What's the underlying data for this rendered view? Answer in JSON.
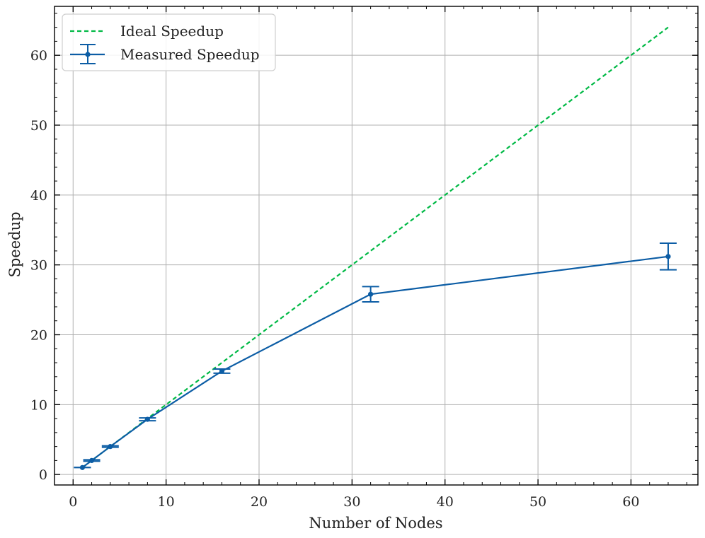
{
  "chart_data": {
    "type": "line",
    "xlabel": "Number of Nodes",
    "ylabel": "Speedup",
    "xlim": [
      -2,
      67.2
    ],
    "ylim": [
      -1.5,
      67
    ],
    "x_ticks": [
      0,
      10,
      20,
      30,
      40,
      50,
      60
    ],
    "y_ticks": [
      0,
      10,
      20,
      30,
      40,
      50,
      60
    ],
    "x_tick_labels": [
      "0",
      "10",
      "20",
      "30",
      "40",
      "50",
      "60"
    ],
    "y_tick_labels": [
      "0",
      "10",
      "20",
      "30",
      "40",
      "50",
      "60"
    ],
    "grid": true,
    "legend_position": "top-left",
    "series": [
      {
        "name": "Ideal Speedup",
        "style": "dashed",
        "color": "#00b945",
        "x": [
          1,
          2,
          4,
          8,
          16,
          32,
          64
        ],
        "y": [
          1,
          2,
          4,
          8,
          16,
          32,
          64
        ]
      },
      {
        "name": "Measured Speedup",
        "style": "solid",
        "color": "#0c5da5",
        "markers": true,
        "x": [
          1,
          2,
          4,
          8,
          16,
          32,
          64
        ],
        "y": [
          1.0,
          2.0,
          4.0,
          7.9,
          14.8,
          25.8,
          31.2
        ],
        "error": [
          0.0,
          0.1,
          0.1,
          0.2,
          0.3,
          1.1,
          1.9
        ]
      }
    ]
  }
}
